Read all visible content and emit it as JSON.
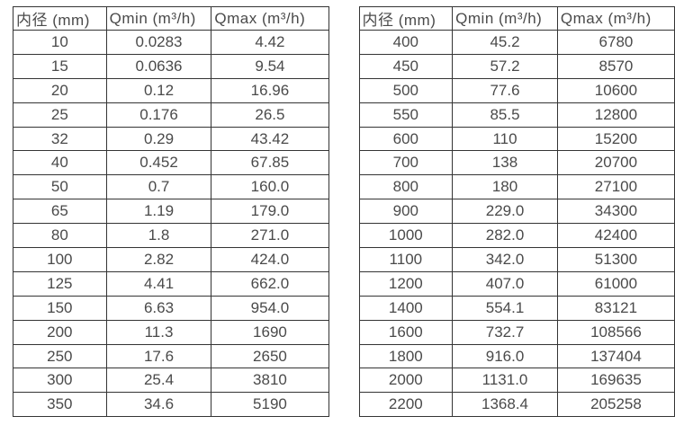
{
  "page": {
    "background_color": "#ffffff",
    "border_color": "#343434",
    "text_color": "#4a4a4a"
  },
  "tables": [
    {
      "name": "flow-table-left",
      "headers": [
        "内径 (mm)",
        "Qmin (m³/h)",
        "Qmax (m³/h)"
      ],
      "rows": [
        [
          "10",
          "0.0283",
          "4.42"
        ],
        [
          "15",
          "0.0636",
          "9.54"
        ],
        [
          "20",
          "0.12",
          "16.96"
        ],
        [
          "25",
          "0.176",
          "26.5"
        ],
        [
          "32",
          "0.29",
          "43.42"
        ],
        [
          "40",
          "0.452",
          "67.85"
        ],
        [
          "50",
          "0.7",
          "160.0"
        ],
        [
          "65",
          "1.19",
          "179.0"
        ],
        [
          "80",
          "1.8",
          "271.0"
        ],
        [
          "100",
          "2.82",
          "424.0"
        ],
        [
          "125",
          "4.41",
          "662.0"
        ],
        [
          "150",
          "6.63",
          "954.0"
        ],
        [
          "200",
          "11.3",
          "1690"
        ],
        [
          "250",
          "17.6",
          "2650"
        ],
        [
          "300",
          "25.4",
          "3810"
        ],
        [
          "350",
          "34.6",
          "5190"
        ]
      ]
    },
    {
      "name": "flow-table-right",
      "headers": [
        "内径 (mm)",
        "Qmin (m³/h)",
        "Qmax (m³/h)"
      ],
      "rows": [
        [
          "400",
          "45.2",
          "6780"
        ],
        [
          "450",
          "57.2",
          "8570"
        ],
        [
          "500",
          "77.6",
          "10600"
        ],
        [
          "550",
          "85.5",
          "12800"
        ],
        [
          "600",
          "110",
          "15200"
        ],
        [
          "700",
          "138",
          "20700"
        ],
        [
          "800",
          "180",
          "27100"
        ],
        [
          "900",
          "229.0",
          "34300"
        ],
        [
          "1000",
          "282.0",
          "42400"
        ],
        [
          "1100",
          "342.0",
          "51300"
        ],
        [
          "1200",
          "407.0",
          "61000"
        ],
        [
          "1400",
          "554.1",
          "83121"
        ],
        [
          "1600",
          "732.7",
          "108566"
        ],
        [
          "1800",
          "916.0",
          "137404"
        ],
        [
          "2000",
          "1131.0",
          "169635"
        ],
        [
          "2200",
          "1368.4",
          "205258"
        ]
      ]
    }
  ]
}
